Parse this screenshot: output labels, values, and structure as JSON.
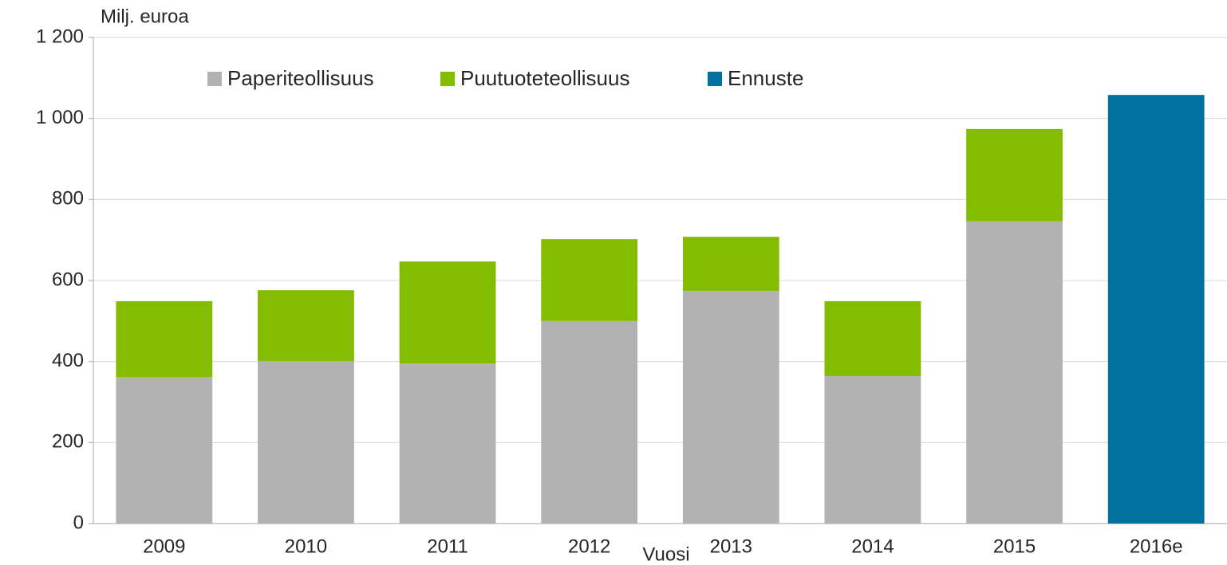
{
  "chart_data": {
    "type": "stacked_bar",
    "y_axis_label": "Milj. euroa",
    "x_axis_label": "Vuosi",
    "categories": [
      "2009",
      "2010",
      "2011",
      "2012",
      "2013",
      "2014",
      "2015",
      "2016e"
    ],
    "series": [
      {
        "name": "Paperiteollisuus",
        "color": "#b2b2b2",
        "values": [
          362,
          401,
          395,
          500,
          574,
          364,
          746,
          null
        ]
      },
      {
        "name": "Puutuoteteollisuus",
        "color": "#84bd00",
        "values": [
          187,
          175,
          252,
          202,
          134,
          185,
          228,
          null
        ]
      },
      {
        "name": "Ennuste",
        "color": "#00709f",
        "values": [
          null,
          null,
          null,
          null,
          null,
          null,
          null,
          1058
        ]
      }
    ],
    "ylim": [
      0,
      1200
    ],
    "yticks": [
      0,
      200,
      400,
      600,
      800,
      {
        "value": 1000,
        "label": "1 000"
      },
      {
        "value": 1200,
        "label": "1 200"
      }
    ],
    "grid": true,
    "legend": "top"
  }
}
